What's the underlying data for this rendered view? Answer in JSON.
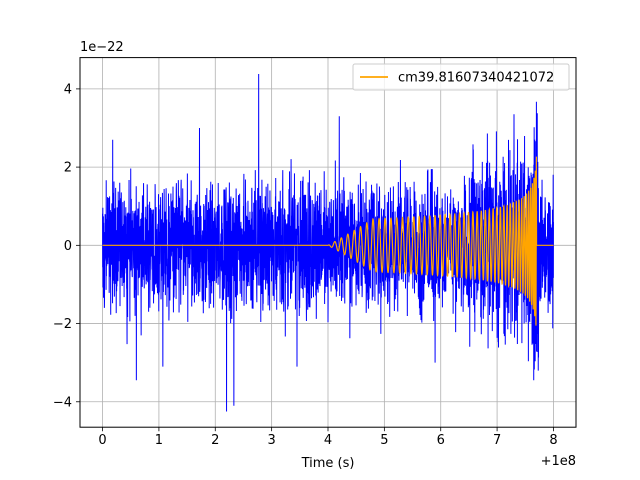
{
  "chart_data": {
    "type": "line",
    "title": "",
    "xlabel": "Time (s)",
    "ylabel": "",
    "x_offset_text": "+1e8",
    "y_scale_text": "1e−22",
    "xlim": [
      -0.4,
      8.4
    ],
    "ylim": [
      -4.65,
      4.8
    ],
    "x_ticks": [
      0,
      1,
      2,
      3,
      4,
      5,
      6,
      7,
      8
    ],
    "x_tick_labels": [
      "0",
      "1",
      "2",
      "3",
      "4",
      "5",
      "6",
      "7",
      "8"
    ],
    "y_ticks": [
      -4,
      -2,
      0,
      2,
      4
    ],
    "y_tick_labels": [
      "−4",
      "−2",
      "0",
      "2",
      "4"
    ],
    "grid": true,
    "legend_position": "upper-right",
    "series": [
      {
        "label": "",
        "color": "#0000ff",
        "x_range": [
          0,
          8
        ],
        "typical_amplitude": 1.1,
        "spikes": [
          {
            "x": 2.77,
            "y": 4.38
          },
          {
            "x": 2.2,
            "y": -4.25
          },
          {
            "x": 2.33,
            "y": -4.1
          },
          {
            "x": 0.6,
            "y": -3.45
          },
          {
            "x": 1.72,
            "y": 3.0
          },
          {
            "x": 4.2,
            "y": 3.3
          },
          {
            "x": 7.3,
            "y": 3.35
          },
          {
            "x": 7.65,
            "y": -3.45
          },
          {
            "x": 1.07,
            "y": -3.1
          },
          {
            "x": 0.18,
            "y": 2.7
          },
          {
            "x": 3.45,
            "y": -3.1
          },
          {
            "x": 5.9,
            "y": -3.0
          }
        ]
      },
      {
        "name": "cm39.81607340421072",
        "color": "#ffa500",
        "x_range": [
          0,
          8
        ],
        "type": "chirp",
        "merger_time": 7.7,
        "peak_amplitude": 2.4,
        "onset_time": 4.5
      }
    ]
  }
}
